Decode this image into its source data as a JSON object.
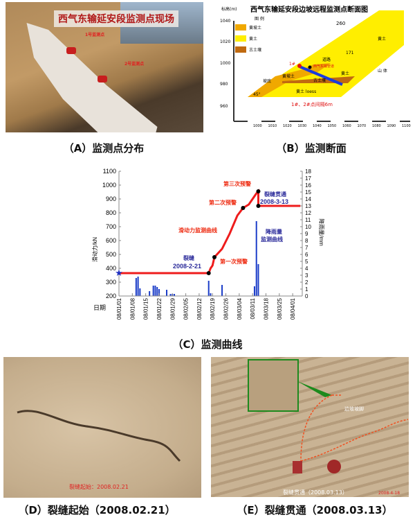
{
  "panelA": {
    "caption": "（A）监测点分布",
    "photo_title": "西气东输延安段监测点现场",
    "marker1": "1号监测点",
    "marker2": "2号监测点"
  },
  "panelB": {
    "caption": "（B）监测断面",
    "title": "西气东输延安段边坡远程监测点断面图",
    "yaxis_label": "标高(m)",
    "y_ticks": [
      "1040",
      "1020",
      "1000",
      "980",
      "960"
    ],
    "x_ticks": [
      "1000",
      "1010",
      "1020",
      "1030",
      "1040",
      "1050",
      "1060",
      "1070",
      "1080",
      "1090",
      "1100"
    ],
    "legend_title": "图  例",
    "legend": [
      {
        "label": "黄坡土",
        "color": "#f0a800"
      },
      {
        "label": "黄土",
        "color": "#ffee00"
      },
      {
        "label": "古土壤",
        "color": "#c06a10"
      }
    ],
    "labels": {
      "road": "道路",
      "pipe": "西气东输管道",
      "point1": "1#",
      "mountain": "山 体",
      "loess_top": "黄土",
      "loess_mid": "黄土",
      "loess_bottom": "黄土 loess",
      "paleosol": "古土壤",
      "slope_fill": "黄坡土",
      "toe": "坡底",
      "angle": "45°",
      "elev1": "260",
      "elev2": "171",
      "note": "1#、2#点间隔6m"
    }
  },
  "panelC": {
    "caption": "（C）监测曲线"
  },
  "chart_data": {
    "type": "line+bar",
    "xlabel": "日期",
    "ylabel_left": "滑动力/kN",
    "ylabel_right": "降雨量/mm",
    "ylim_left": [
      200,
      1100
    ],
    "ylim_right": [
      0,
      18
    ],
    "left_ticks": [
      "1100",
      "1000",
      "900",
      "800",
      "700",
      "600",
      "500",
      "400",
      "300",
      "200"
    ],
    "right_ticks": [
      "18",
      "17",
      "16",
      "15",
      "14",
      "13",
      "12",
      "11",
      "10",
      "9",
      "8",
      "7",
      "6",
      "5",
      "4",
      "3",
      "2",
      "1",
      "0"
    ],
    "x_ticks": [
      "08/01/01",
      "08/01/08",
      "08/01/15",
      "08/01/22",
      "08/01/29",
      "08/02/05",
      "08/02/12",
      "08/02/19",
      "08/02/26",
      "08/03/04",
      "08/03/11",
      "08/03/18",
      "08/03/25",
      "08/04/01"
    ],
    "series": [
      {
        "name": "滑动力监测曲线",
        "axis": "left",
        "color": "#ee1c1c",
        "points": [
          [
            "2008-01-01",
            365
          ],
          [
            "2008-02-17",
            365
          ],
          [
            "2008-02-18",
            400
          ],
          [
            "2008-02-19",
            420
          ],
          [
            "2008-02-20",
            480
          ],
          [
            "2008-02-24",
            540
          ],
          [
            "2008-02-28",
            650
          ],
          [
            "2008-03-03",
            780
          ],
          [
            "2008-03-06",
            835
          ],
          [
            "2008-03-09",
            860
          ],
          [
            "2008-03-11",
            900
          ],
          [
            "2008-03-13",
            940
          ],
          [
            "2008-03-14",
            955
          ],
          [
            "2008-03-14",
            850
          ],
          [
            "2008-04-05",
            850
          ]
        ]
      },
      {
        "name": "降雨量监测曲线",
        "axis": "right",
        "type": "bar",
        "color": "#1a3cc8",
        "points": [
          [
            "2008-01-10",
            2.6
          ],
          [
            "2008-01-11",
            2.8
          ],
          [
            "2008-01-12",
            1.1
          ],
          [
            "2008-01-17",
            0.7
          ],
          [
            "2008-01-19",
            1.5
          ],
          [
            "2008-01-20",
            1.5
          ],
          [
            "2008-01-21",
            1.3
          ],
          [
            "2008-01-22",
            1.0
          ],
          [
            "2008-01-26",
            0.9
          ],
          [
            "2008-01-28",
            0.3
          ],
          [
            "2008-01-29",
            0.3
          ],
          [
            "2008-01-30",
            0.3
          ],
          [
            "2008-02-17",
            2.2
          ],
          [
            "2008-02-18",
            0.4
          ],
          [
            "2008-02-24",
            1.6
          ],
          [
            "2008-03-12",
            1.4
          ],
          [
            "2008-03-13",
            10.8
          ],
          [
            "2008-03-14",
            4.6
          ]
        ]
      }
    ],
    "key_points": [
      [
        "2008-02-17",
        365
      ],
      [
        "2008-02-20",
        480
      ],
      [
        "2008-03-06",
        835
      ],
      [
        "2008-03-14",
        955
      ],
      [
        "2008-03-14",
        850
      ]
    ],
    "start_marker": [
      "2008-01-01",
      365
    ],
    "annotations": {
      "crack_label": "裂缝",
      "crack_date": "2008-2-21",
      "warn1": "第一次预警",
      "warn2": "第二次预警",
      "warn3": "第三次预警",
      "through_label": "裂缝贯通",
      "through_date": "2008-3-13",
      "force_curve": "滑动力监测曲线",
      "rain_curve_1": "降雨量",
      "rain_curve_2": "监测曲线"
    }
  },
  "panelD": {
    "caption": "（D）裂缝起始（2008.02.21）",
    "photo_text": "裂缝起始：2008.02.21"
  },
  "panelE": {
    "caption": "（E）裂缝贯通（2008.03.13）",
    "photo_text": "裂缝贯通（2008.03.13）",
    "slope_label": "边坡坡脚",
    "stamp": "2008-4-18"
  }
}
